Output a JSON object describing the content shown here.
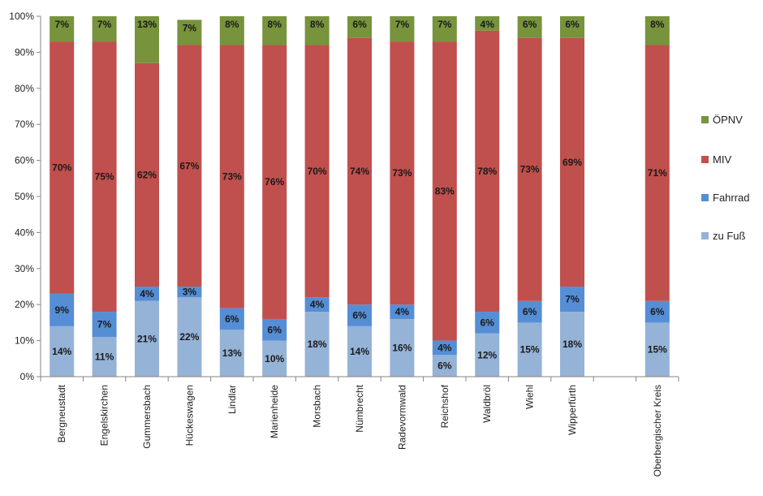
{
  "chart_data": {
    "type": "bar",
    "stacked": true,
    "percent_scale": true,
    "ylim": [
      0,
      100
    ],
    "yticks": [
      "0%",
      "10%",
      "20%",
      "30%",
      "40%",
      "50%",
      "60%",
      "70%",
      "80%",
      "90%",
      "100%"
    ],
    "categories": [
      "Bergneustadt",
      "Engelskirchen",
      "Gummersbach",
      "Hückeswagen",
      "Lindlar",
      "Marienheide",
      "Morsbach",
      "Nümbrecht",
      "Radevormwald",
      "Reichshof",
      "Waldbröl",
      "Wiehl",
      "Wipperfürth",
      "",
      "Oberbergischer Kreis"
    ],
    "series": [
      {
        "name": "zu Fuß",
        "color": "#95b3d7",
        "values": [
          14,
          11,
          21,
          22,
          13,
          10,
          18,
          14,
          16,
          6,
          12,
          15,
          18,
          null,
          15
        ],
        "labels": [
          "14%",
          "11%",
          "21%",
          "22%",
          "13%",
          "10%",
          "18%",
          "14%",
          "16%",
          "6%",
          "12%",
          "15%",
          "18%",
          "",
          "15%"
        ]
      },
      {
        "name": "Fahrrad",
        "color": "#558ed5",
        "values": [
          9,
          7,
          4,
          3,
          6,
          6,
          4,
          6,
          4,
          4,
          6,
          6,
          7,
          null,
          6
        ],
        "labels": [
          "9%",
          "7%",
          "4%",
          "3%",
          "6%",
          "6%",
          "4%",
          "6%",
          "4%",
          "4%",
          "6%",
          "6%",
          "7%",
          "",
          "6%"
        ]
      },
      {
        "name": "MIV",
        "color": "#c0504d",
        "values": [
          70,
          75,
          62,
          67,
          73,
          76,
          70,
          74,
          73,
          83,
          78,
          73,
          69,
          null,
          71
        ],
        "labels": [
          "70%",
          "75%",
          "62%",
          "67%",
          "73%",
          "76%",
          "70%",
          "74%",
          "73%",
          "83%",
          "78%",
          "73%",
          "69%",
          "",
          "71%"
        ]
      },
      {
        "name": "ÖPNV",
        "color": "#77933c",
        "values": [
          7,
          7,
          13,
          7,
          8,
          8,
          8,
          6,
          7,
          7,
          4,
          6,
          6,
          null,
          8
        ],
        "labels": [
          "7%",
          "7%",
          "13%",
          "7%",
          "8%",
          "8%",
          "8%",
          "6%",
          "7%",
          "7%",
          "4%",
          "6%",
          "6%",
          "",
          "8%"
        ]
      }
    ],
    "legend": {
      "position": "right",
      "order": [
        "ÖPNV",
        "MIV",
        "Fahrrad",
        "zu Fuß"
      ]
    },
    "grid": false
  }
}
